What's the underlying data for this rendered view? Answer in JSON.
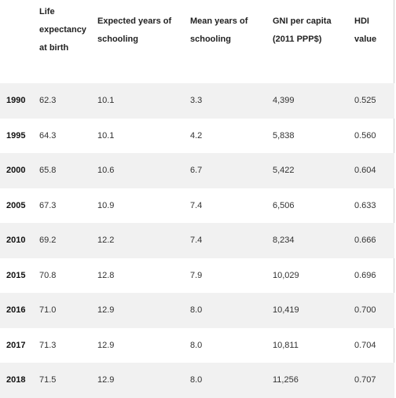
{
  "table": {
    "headers": [
      "",
      "Life expectancy at birth",
      "Expected years of schooling",
      "Mean years of schooling",
      "GNI per capita (2011 PPP$)",
      "HDI value"
    ],
    "rows": [
      [
        "1990",
        "62.3",
        "10.1",
        "3.3",
        "4,399",
        "0.525"
      ],
      [
        "1995",
        "64.3",
        "10.1",
        "4.2",
        "5,838",
        "0.560"
      ],
      [
        "2000",
        "65.8",
        "10.6",
        "6.7",
        "5,422",
        "0.604"
      ],
      [
        "2005",
        "67.3",
        "10.9",
        "7.4",
        "6,506",
        "0.633"
      ],
      [
        "2010",
        "69.2",
        "12.2",
        "7.4",
        "8,234",
        "0.666"
      ],
      [
        "2015",
        "70.8",
        "12.8",
        "7.9",
        "10,029",
        "0.696"
      ],
      [
        "2016",
        "71.0",
        "12.9",
        "8.0",
        "10,419",
        "0.700"
      ],
      [
        "2017",
        "71.3",
        "12.9",
        "8.0",
        "10,811",
        "0.704"
      ],
      [
        "2018",
        "71.5",
        "12.9",
        "8.0",
        "11,256",
        "0.707"
      ]
    ]
  }
}
